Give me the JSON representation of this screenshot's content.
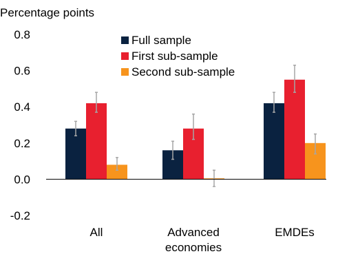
{
  "chart_data": {
    "type": "bar",
    "ylabel": "Percentage points",
    "ylim": [
      -0.2,
      0.8
    ],
    "yticks": [
      "0.8",
      "0.6",
      "0.4",
      "0.2",
      "0.0",
      "-0.2"
    ],
    "ytick_values": [
      0.8,
      0.6,
      0.4,
      0.2,
      0.0,
      -0.2
    ],
    "categories": [
      [
        "All"
      ],
      [
        "Advanced",
        "economies"
      ],
      [
        "EMDEs"
      ]
    ],
    "series": [
      {
        "name": "Full sample",
        "color": "#0a2240",
        "values": [
          0.28,
          0.16,
          0.42
        ],
        "error_low": [
          0.24,
          0.11,
          0.37
        ],
        "error_high": [
          0.32,
          0.21,
          0.48
        ]
      },
      {
        "name": "First sub-sample",
        "color": "#e8202f",
        "values": [
          0.42,
          0.28,
          0.55
        ],
        "error_low": [
          0.37,
          0.22,
          0.48
        ],
        "error_high": [
          0.48,
          0.36,
          0.63
        ]
      },
      {
        "name": "Second sub-sample",
        "color": "#f7941d",
        "values": [
          0.08,
          0.005,
          0.2
        ],
        "error_low": [
          0.05,
          -0.04,
          0.14
        ],
        "error_high": [
          0.12,
          0.05,
          0.25
        ]
      }
    ],
    "legend_position": "top-center",
    "error_bar_color": "#a6a6a6",
    "grid": false
  }
}
